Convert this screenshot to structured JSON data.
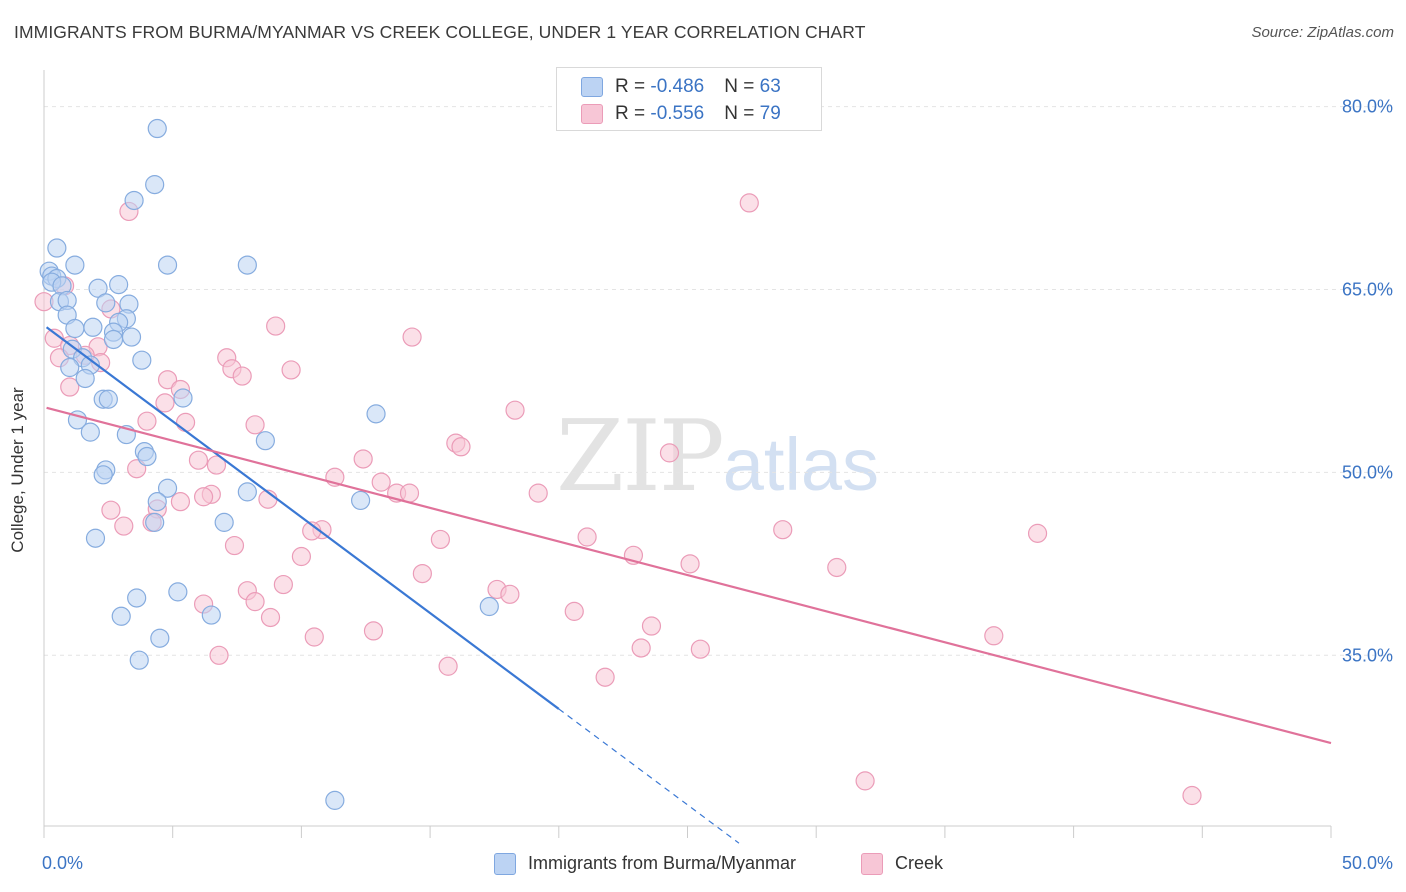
{
  "title": "IMMIGRANTS FROM BURMA/MYANMAR VS CREEK COLLEGE, UNDER 1 YEAR CORRELATION CHART",
  "source": "Source: ZipAtlas.com",
  "watermark": {
    "zip": "ZIP",
    "atlas": "atlas"
  },
  "colors": {
    "blue": "#3a78d4",
    "blue_fill": "#bcd3f3",
    "pink": "#e0729a",
    "pink_fill": "#f7c6d6",
    "tick_label": "#3b74c4"
  },
  "legend_top": [
    {
      "r_label": "R = ",
      "r_value": "-0.486",
      "n_label": "N = ",
      "n_value": "63"
    },
    {
      "r_label": "R = ",
      "r_value": "-0.556",
      "n_label": "N = ",
      "n_value": "79"
    }
  ],
  "chart_data": {
    "type": "scatter",
    "title": "IMMIGRANTS FROM BURMA/MYANMAR VS CREEK COLLEGE, UNDER 1 YEAR CORRELATION CHART",
    "xlabel": "",
    "ylabel": "College, Under 1 year",
    "xlim": [
      0,
      50
    ],
    "ylim": [
      21,
      83
    ],
    "x_tick_labels": [
      "0.0%",
      "50.0%"
    ],
    "y_ticks": [
      35,
      50,
      65,
      80
    ],
    "y_tick_labels": [
      "35.0%",
      "50.0%",
      "65.0%",
      "80.0%"
    ],
    "grid": true,
    "legend_position": "bottom",
    "series": [
      {
        "name": "Immigrants from Burma/Myanmar",
        "color": "#3a78d4",
        "R": -0.486,
        "N": 63,
        "trend": {
          "x0": 0.1,
          "y0": 61.9,
          "x1": 20.0,
          "y1": 30.6,
          "dash_to_x": 27.0
        },
        "points": [
          [
            4.4,
            78.2
          ],
          [
            4.3,
            73.6
          ],
          [
            3.5,
            72.3
          ],
          [
            0.5,
            68.4
          ],
          [
            4.8,
            67.0
          ],
          [
            7.9,
            67.0
          ],
          [
            1.2,
            67.0
          ],
          [
            0.2,
            66.5
          ],
          [
            0.3,
            66.1
          ],
          [
            0.5,
            65.9
          ],
          [
            0.3,
            65.6
          ],
          [
            0.7,
            65.3
          ],
          [
            2.9,
            65.4
          ],
          [
            2.1,
            65.1
          ],
          [
            0.6,
            64.0
          ],
          [
            0.9,
            64.1
          ],
          [
            2.4,
            63.9
          ],
          [
            3.3,
            63.8
          ],
          [
            0.9,
            62.9
          ],
          [
            3.2,
            62.6
          ],
          [
            2.9,
            62.3
          ],
          [
            1.2,
            61.8
          ],
          [
            1.9,
            61.9
          ],
          [
            2.7,
            61.5
          ],
          [
            3.4,
            61.1
          ],
          [
            2.7,
            60.9
          ],
          [
            1.1,
            60.1
          ],
          [
            1.5,
            59.4
          ],
          [
            3.8,
            59.2
          ],
          [
            1.8,
            58.8
          ],
          [
            1.0,
            58.6
          ],
          [
            1.6,
            57.7
          ],
          [
            5.4,
            56.1
          ],
          [
            2.3,
            56.0
          ],
          [
            2.5,
            56.0
          ],
          [
            12.9,
            54.8
          ],
          [
            1.3,
            54.3
          ],
          [
            1.8,
            53.3
          ],
          [
            3.2,
            53.1
          ],
          [
            8.6,
            52.6
          ],
          [
            3.9,
            51.7
          ],
          [
            4.0,
            51.3
          ],
          [
            2.4,
            50.2
          ],
          [
            2.3,
            49.8
          ],
          [
            4.8,
            48.7
          ],
          [
            7.9,
            48.4
          ],
          [
            4.4,
            47.6
          ],
          [
            12.3,
            47.7
          ],
          [
            4.3,
            45.9
          ],
          [
            7.0,
            45.9
          ],
          [
            2.0,
            44.6
          ],
          [
            5.2,
            40.2
          ],
          [
            17.3,
            39.0
          ],
          [
            3.6,
            39.7
          ],
          [
            3.0,
            38.2
          ],
          [
            6.5,
            38.3
          ],
          [
            4.5,
            36.4
          ],
          [
            3.7,
            34.6
          ],
          [
            11.3,
            23.1
          ]
        ]
      },
      {
        "name": "Creek",
        "color": "#e0729a",
        "R": -0.556,
        "N": 79,
        "trend": {
          "x0": 0.1,
          "y0": 55.3,
          "x1": 50.0,
          "y1": 27.8
        },
        "points": [
          [
            0.0,
            64.0
          ],
          [
            0.8,
            65.3
          ],
          [
            3.3,
            71.4
          ],
          [
            27.4,
            72.1
          ],
          [
            2.6,
            63.4
          ],
          [
            9.0,
            62.0
          ],
          [
            14.3,
            61.1
          ],
          [
            0.4,
            61.0
          ],
          [
            1.0,
            60.4
          ],
          [
            2.1,
            60.3
          ],
          [
            1.6,
            59.6
          ],
          [
            0.6,
            59.4
          ],
          [
            7.1,
            59.4
          ],
          [
            2.2,
            59.0
          ],
          [
            9.6,
            58.4
          ],
          [
            7.3,
            58.5
          ],
          [
            7.7,
            57.9
          ],
          [
            4.8,
            57.6
          ],
          [
            1.0,
            57.0
          ],
          [
            5.3,
            56.8
          ],
          [
            4.7,
            55.7
          ],
          [
            18.3,
            55.1
          ],
          [
            5.5,
            54.1
          ],
          [
            4.0,
            54.2
          ],
          [
            8.2,
            53.9
          ],
          [
            16.0,
            52.4
          ],
          [
            16.2,
            52.1
          ],
          [
            24.3,
            51.6
          ],
          [
            12.4,
            51.1
          ],
          [
            6.0,
            51.0
          ],
          [
            6.7,
            50.6
          ],
          [
            3.6,
            50.3
          ],
          [
            11.3,
            49.6
          ],
          [
            13.1,
            49.2
          ],
          [
            13.7,
            48.3
          ],
          [
            14.2,
            48.3
          ],
          [
            19.2,
            48.3
          ],
          [
            6.5,
            48.2
          ],
          [
            6.2,
            48.0
          ],
          [
            5.3,
            47.6
          ],
          [
            8.7,
            47.8
          ],
          [
            4.4,
            47.0
          ],
          [
            2.6,
            46.9
          ],
          [
            4.2,
            45.9
          ],
          [
            3.1,
            45.6
          ],
          [
            10.8,
            45.3
          ],
          [
            10.4,
            45.2
          ],
          [
            28.7,
            45.3
          ],
          [
            21.1,
            44.7
          ],
          [
            38.6,
            45.0
          ],
          [
            15.4,
            44.5
          ],
          [
            7.4,
            44.0
          ],
          [
            22.9,
            43.2
          ],
          [
            10.0,
            43.1
          ],
          [
            25.1,
            42.5
          ],
          [
            30.8,
            42.2
          ],
          [
            14.7,
            41.7
          ],
          [
            9.3,
            40.8
          ],
          [
            17.6,
            40.4
          ],
          [
            7.9,
            40.3
          ],
          [
            18.1,
            40.0
          ],
          [
            6.2,
            39.2
          ],
          [
            8.2,
            39.4
          ],
          [
            20.6,
            38.6
          ],
          [
            8.8,
            38.1
          ],
          [
            23.6,
            37.4
          ],
          [
            12.8,
            37.0
          ],
          [
            10.5,
            36.5
          ],
          [
            36.9,
            36.6
          ],
          [
            23.2,
            35.6
          ],
          [
            25.5,
            35.5
          ],
          [
            6.8,
            35.0
          ],
          [
            15.7,
            34.1
          ],
          [
            21.8,
            33.2
          ],
          [
            31.9,
            24.7
          ],
          [
            44.6,
            23.5
          ]
        ]
      }
    ]
  },
  "legend_bottom": [
    {
      "label": "Immigrants from Burma/Myanmar"
    },
    {
      "label": "Creek"
    }
  ]
}
